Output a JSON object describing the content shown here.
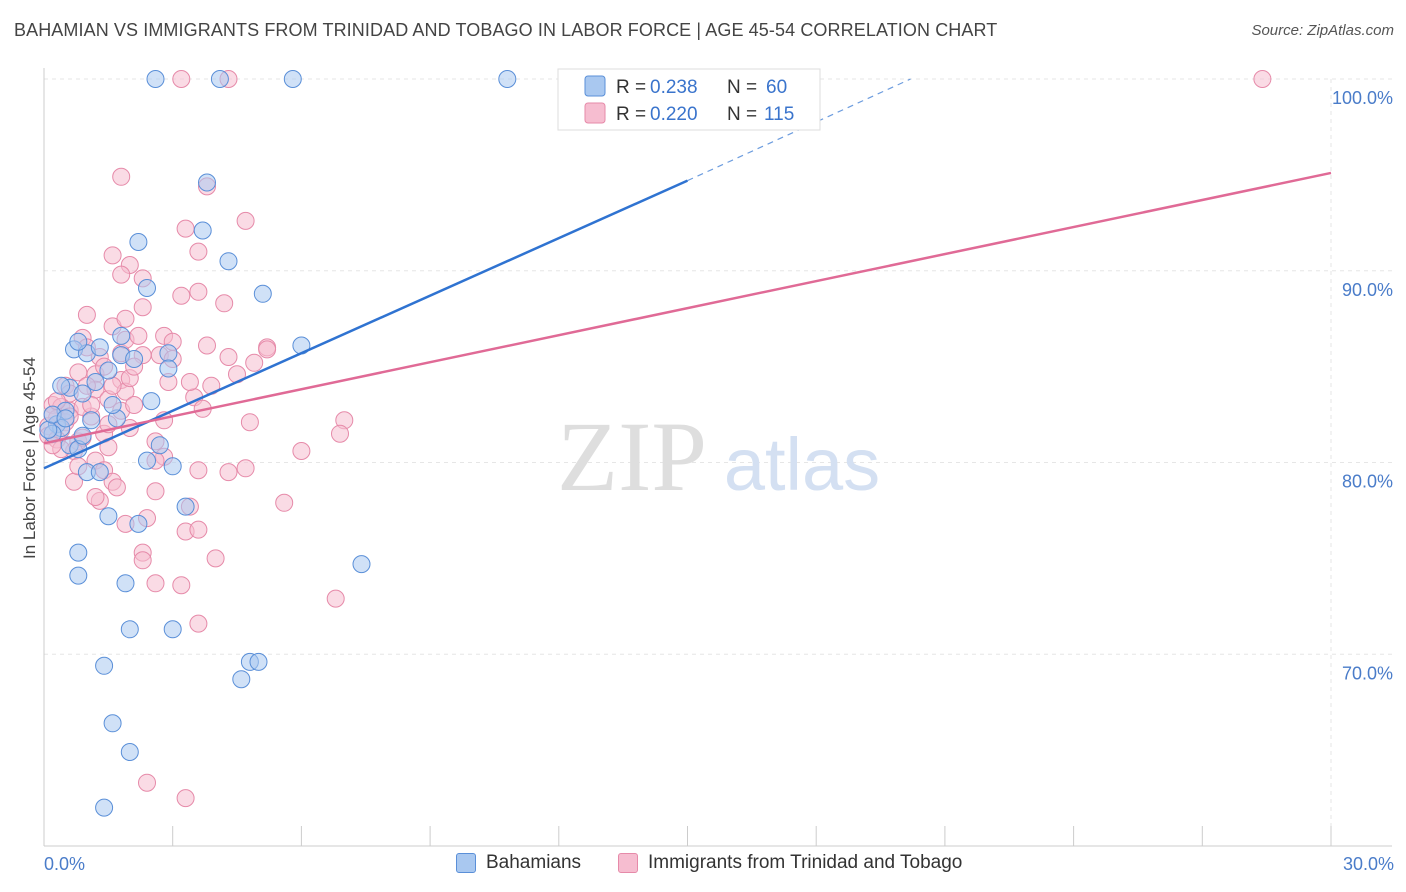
{
  "title": "BAHAMIAN VS IMMIGRANTS FROM TRINIDAD AND TOBAGO IN LABOR FORCE | AGE 45-54 CORRELATION CHART",
  "source": "Source: ZipAtlas.com",
  "watermark": {
    "zip": "ZIP",
    "atlas": "atlas"
  },
  "colors": {
    "blue_fill": "#a9c8f0",
    "blue_stroke": "#5a8fd8",
    "blue_line": "#2f73d1",
    "pink_fill": "#f6bdd0",
    "pink_stroke": "#e68aa9",
    "pink_line": "#e06a96",
    "axis_label": "#4a7cc9"
  },
  "legend": {
    "rows": [
      {
        "r_label": "R =",
        "r_value": "0.238",
        "n_label": "N =",
        "n_value": "60"
      },
      {
        "r_label": "R =",
        "r_value": "0.220",
        "n_label": "N =",
        "n_value": "115"
      }
    ]
  },
  "chart_data": {
    "type": "scatter",
    "title": "BAHAMIAN VS IMMIGRANTS FROM TRINIDAD AND TOBAGO IN LABOR FORCE | AGE 45-54 CORRELATION CHART",
    "xlabel": "",
    "ylabel": "In Labor Force | Age 45-54",
    "xlim": [
      0,
      30
    ],
    "ylim": [
      60,
      100
    ],
    "x_tick_labels": [
      "0.0%",
      "30.0%"
    ],
    "y_ticks": [
      70,
      80,
      90,
      100
    ],
    "y_tick_labels": [
      "70.0%",
      "80.0%",
      "90.0%",
      "100.0%"
    ],
    "grid": true,
    "legend_position": "bottom",
    "series": [
      {
        "name": "Bahamians",
        "color": "#5a8fd8",
        "trend": {
          "x": [
            0,
            15
          ],
          "y": [
            79.7,
            94.7
          ],
          "dashed_extension": {
            "x": [
              15,
              20.2
            ],
            "y": [
              94.7,
              100
            ]
          }
        },
        "points": [
          [
            2.6,
            100
          ],
          [
            4.1,
            100
          ],
          [
            5.8,
            100
          ],
          [
            10.8,
            100
          ],
          [
            3.8,
            94.6
          ],
          [
            3.7,
            92.1
          ],
          [
            2.2,
            91.5
          ],
          [
            4.3,
            90.5
          ],
          [
            5.1,
            88.8
          ],
          [
            2.4,
            89.1
          ],
          [
            6.0,
            86.1
          ],
          [
            0.7,
            85.9
          ],
          [
            1.0,
            85.7
          ],
          [
            1.8,
            85.6
          ],
          [
            2.1,
            85.4
          ],
          [
            2.9,
            85.7
          ],
          [
            1.3,
            86.0
          ],
          [
            1.8,
            86.6
          ],
          [
            0.8,
            86.3
          ],
          [
            1.5,
            84.8
          ],
          [
            0.6,
            83.9
          ],
          [
            0.9,
            83.6
          ],
          [
            2.5,
            83.2
          ],
          [
            0.5,
            82.7
          ],
          [
            1.1,
            82.2
          ],
          [
            0.3,
            82.0
          ],
          [
            0.4,
            81.8
          ],
          [
            0.2,
            81.5
          ],
          [
            0.1,
            81.7
          ],
          [
            1.7,
            82.3
          ],
          [
            0.6,
            80.9
          ],
          [
            0.8,
            80.7
          ],
          [
            2.7,
            80.9
          ],
          [
            2.4,
            80.1
          ],
          [
            3.0,
            79.8
          ],
          [
            1.0,
            79.5
          ],
          [
            1.3,
            79.5
          ],
          [
            3.3,
            77.7
          ],
          [
            2.2,
            76.8
          ],
          [
            1.5,
            77.2
          ],
          [
            0.8,
            75.3
          ],
          [
            7.4,
            74.7
          ],
          [
            0.8,
            74.1
          ],
          [
            1.9,
            73.7
          ],
          [
            2.0,
            71.3
          ],
          [
            3.0,
            71.3
          ],
          [
            1.4,
            69.4
          ],
          [
            4.8,
            69.6
          ],
          [
            5.0,
            69.6
          ],
          [
            4.6,
            68.7
          ],
          [
            1.6,
            66.4
          ],
          [
            2.0,
            64.9
          ],
          [
            1.4,
            62.0
          ],
          [
            0.2,
            82.5
          ],
          [
            0.5,
            82.3
          ],
          [
            0.9,
            81.4
          ],
          [
            1.2,
            84.2
          ],
          [
            0.4,
            84.0
          ],
          [
            2.9,
            84.9
          ],
          [
            1.6,
            83.0
          ]
        ]
      },
      {
        "name": "Immigrants from Trinidad and Tobago",
        "color": "#e68aa9",
        "trend": {
          "x": [
            0,
            30
          ],
          "y": [
            81.0,
            95.1
          ]
        },
        "points": [
          [
            3.2,
            100
          ],
          [
            4.3,
            100
          ],
          [
            28.4,
            100
          ],
          [
            1.8,
            94.9
          ],
          [
            3.8,
            94.4
          ],
          [
            4.7,
            92.6
          ],
          [
            3.3,
            92.2
          ],
          [
            3.6,
            91.0
          ],
          [
            1.6,
            90.8
          ],
          [
            2.0,
            90.3
          ],
          [
            2.3,
            89.6
          ],
          [
            1.8,
            89.8
          ],
          [
            3.6,
            88.9
          ],
          [
            3.2,
            88.7
          ],
          [
            4.2,
            88.3
          ],
          [
            2.3,
            88.1
          ],
          [
            1.0,
            87.7
          ],
          [
            1.6,
            87.1
          ],
          [
            2.8,
            86.6
          ],
          [
            0.9,
            86.5
          ],
          [
            3.8,
            86.1
          ],
          [
            5.2,
            86.0
          ],
          [
            5.2,
            85.9
          ],
          [
            2.7,
            85.6
          ],
          [
            1.3,
            85.5
          ],
          [
            4.3,
            85.5
          ],
          [
            3.0,
            85.4
          ],
          [
            2.3,
            85.6
          ],
          [
            1.8,
            85.7
          ],
          [
            1.9,
            86.4
          ],
          [
            0.8,
            84.7
          ],
          [
            1.2,
            84.6
          ],
          [
            1.8,
            84.3
          ],
          [
            2.9,
            84.2
          ],
          [
            0.5,
            84.0
          ],
          [
            1.2,
            83.8
          ],
          [
            0.6,
            83.6
          ],
          [
            1.9,
            83.7
          ],
          [
            3.5,
            83.4
          ],
          [
            1.5,
            83.3
          ],
          [
            0.2,
            83.0
          ],
          [
            0.4,
            82.9
          ],
          [
            0.6,
            82.7
          ],
          [
            1.1,
            82.4
          ],
          [
            1.8,
            82.7
          ],
          [
            0.3,
            82.3
          ],
          [
            0.5,
            82.1
          ],
          [
            0.1,
            81.9
          ],
          [
            0.4,
            81.7
          ],
          [
            0.1,
            81.4
          ],
          [
            0.3,
            81.2
          ],
          [
            0.8,
            81.1
          ],
          [
            1.4,
            81.5
          ],
          [
            2.0,
            81.8
          ],
          [
            4.8,
            82.1
          ],
          [
            7.0,
            82.2
          ],
          [
            6.9,
            81.5
          ],
          [
            2.6,
            81.1
          ],
          [
            1.5,
            80.8
          ],
          [
            0.7,
            80.6
          ],
          [
            2.8,
            80.3
          ],
          [
            1.2,
            80.1
          ],
          [
            2.6,
            80.1
          ],
          [
            6.0,
            80.6
          ],
          [
            1.4,
            79.6
          ],
          [
            0.7,
            79.0
          ],
          [
            1.6,
            79.0
          ],
          [
            3.6,
            79.6
          ],
          [
            4.3,
            79.5
          ],
          [
            4.7,
            79.7
          ],
          [
            2.6,
            78.5
          ],
          [
            1.7,
            78.7
          ],
          [
            1.3,
            78.0
          ],
          [
            3.4,
            77.7
          ],
          [
            5.6,
            77.9
          ],
          [
            1.9,
            76.8
          ],
          [
            2.4,
            77.1
          ],
          [
            3.3,
            76.4
          ],
          [
            3.6,
            76.5
          ],
          [
            2.3,
            75.3
          ],
          [
            2.3,
            74.9
          ],
          [
            4.0,
            75.0
          ],
          [
            2.6,
            73.7
          ],
          [
            3.2,
            73.6
          ],
          [
            6.8,
            72.9
          ],
          [
            3.6,
            71.6
          ],
          [
            2.4,
            63.3
          ],
          [
            3.3,
            62.5
          ],
          [
            0.9,
            82.9
          ],
          [
            1.0,
            84.0
          ],
          [
            1.4,
            85.0
          ],
          [
            2.0,
            84.4
          ],
          [
            0.2,
            82.5
          ],
          [
            0.3,
            83.2
          ],
          [
            0.6,
            82.4
          ],
          [
            0.9,
            81.3
          ],
          [
            1.1,
            83.0
          ],
          [
            1.6,
            84.0
          ],
          [
            2.1,
            83.0
          ],
          [
            2.8,
            82.2
          ],
          [
            3.9,
            84.0
          ],
          [
            4.5,
            84.6
          ],
          [
            1.5,
            82.0
          ],
          [
            0.4,
            80.7
          ],
          [
            0.8,
            79.8
          ],
          [
            2.2,
            86.6
          ],
          [
            3.0,
            86.3
          ],
          [
            1.9,
            87.5
          ],
          [
            4.9,
            85.2
          ],
          [
            2.1,
            85.0
          ],
          [
            1.0,
            86.0
          ],
          [
            3.4,
            84.2
          ],
          [
            0.2,
            80.9
          ],
          [
            1.2,
            78.2
          ],
          [
            3.7,
            82.8
          ]
        ]
      }
    ]
  }
}
